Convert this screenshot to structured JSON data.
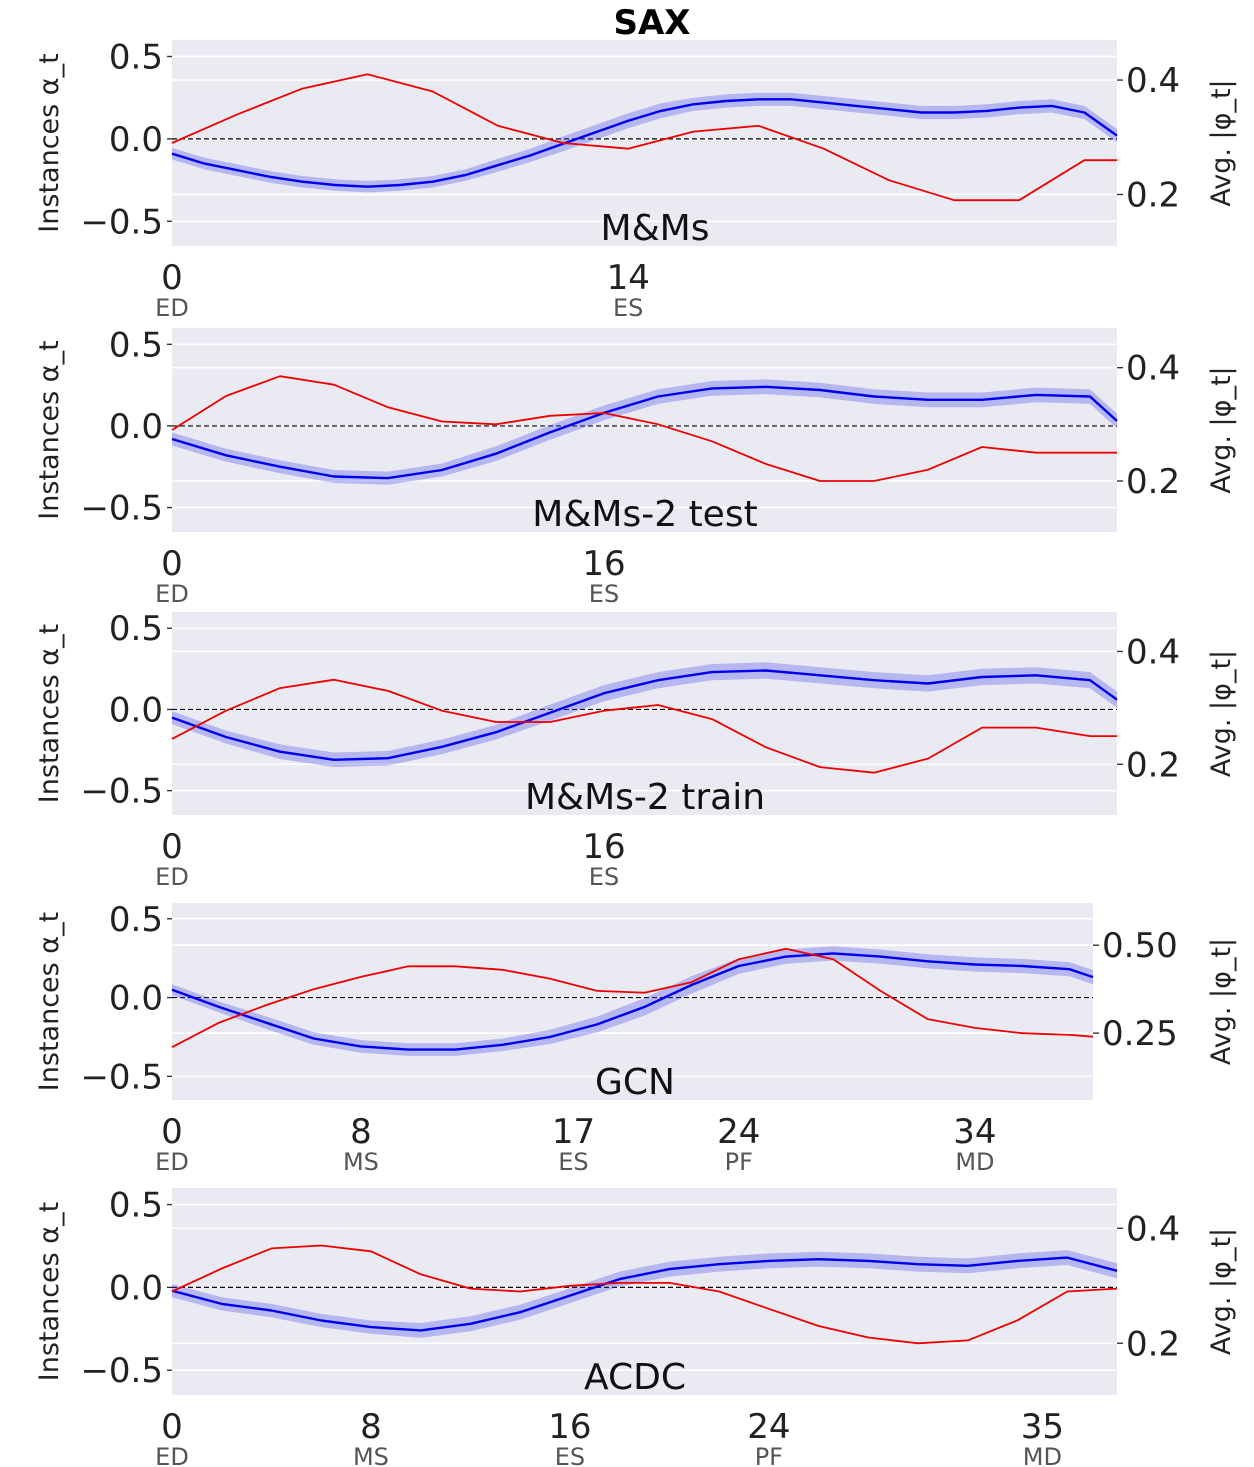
{
  "figure": {
    "title": "SAX"
  },
  "chart_data": [
    {
      "type": "line",
      "title": "M&Ms",
      "ylabel": "Instances α_t",
      "ylabel_right": "Avg. |φ_t|",
      "ylim": [
        -0.65,
        0.6
      ],
      "yticks": [
        {
          "v": 0.5,
          "label": "0.5"
        },
        {
          "v": 0.0,
          "label": "0.0"
        },
        {
          "v": -0.5,
          "label": "−0.5"
        }
      ],
      "y2lim": [
        0.11,
        0.47
      ],
      "y2ticks": [
        {
          "v": 0.4,
          "label": "0.4"
        },
        {
          "v": 0.2,
          "label": "0.2"
        }
      ],
      "xlim": [
        0,
        29
      ],
      "xticks": [
        {
          "v": 0,
          "label": "0",
          "phase": "ED"
        },
        {
          "v": 14,
          "label": "14",
          "phase": "ES"
        }
      ],
      "series": [
        {
          "name": "Instances α_t (mean)",
          "color": "#0000ee",
          "axis": "left",
          "x": [
            0,
            1,
            2,
            3,
            4,
            5,
            6,
            7,
            8,
            9,
            10,
            11,
            12,
            13,
            14,
            15,
            16,
            17,
            18,
            19,
            20,
            21,
            22,
            23,
            24,
            25,
            26,
            27,
            28,
            29
          ],
          "values": [
            -0.09,
            -0.15,
            -0.19,
            -0.23,
            -0.26,
            -0.28,
            -0.29,
            -0.28,
            -0.26,
            -0.22,
            -0.16,
            -0.1,
            -0.03,
            0.04,
            0.11,
            0.17,
            0.21,
            0.23,
            0.24,
            0.24,
            0.22,
            0.2,
            0.18,
            0.16,
            0.16,
            0.17,
            0.19,
            0.2,
            0.16,
            0.02
          ],
          "band": [
            0.035,
            0.035,
            0.035,
            0.035,
            0.035,
            0.035,
            0.035,
            0.035,
            0.035,
            0.035,
            0.04,
            0.04,
            0.045,
            0.045,
            0.045,
            0.045,
            0.04,
            0.04,
            0.04,
            0.04,
            0.04,
            0.04,
            0.04,
            0.04,
            0.04,
            0.04,
            0.04,
            0.04,
            0.04,
            0.04
          ]
        },
        {
          "name": "Avg. |φ_t|",
          "color": "#ee0000",
          "axis": "right",
          "x": [
            0,
            2,
            4,
            6,
            8,
            10,
            12,
            14,
            16,
            18,
            20,
            22,
            24,
            26,
            28,
            29
          ],
          "values": [
            0.29,
            0.34,
            0.385,
            0.41,
            0.38,
            0.32,
            0.29,
            0.28,
            0.31,
            0.32,
            0.28,
            0.225,
            0.19,
            0.19,
            0.26,
            0.26
          ]
        }
      ]
    },
    {
      "type": "line",
      "title": "M&Ms-2 test",
      "ylabel": "Instances α_t",
      "ylabel_right": "Avg. |φ_t|",
      "ylim": [
        -0.65,
        0.6
      ],
      "yticks": [
        {
          "v": 0.5,
          "label": "0.5"
        },
        {
          "v": 0.0,
          "label": "0.0"
        },
        {
          "v": -0.5,
          "label": "−0.5"
        }
      ],
      "y2lim": [
        0.11,
        0.47
      ],
      "y2ticks": [
        {
          "v": 0.4,
          "label": "0.4"
        },
        {
          "v": 0.2,
          "label": "0.2"
        }
      ],
      "xlim": [
        0,
        35
      ],
      "xticks": [
        {
          "v": 0,
          "label": "0",
          "phase": "ED"
        },
        {
          "v": 16,
          "label": "16",
          "phase": "ES"
        }
      ],
      "series": [
        {
          "name": "Instances α_t (mean)",
          "color": "#0000ee",
          "axis": "left",
          "x": [
            0,
            2,
            4,
            6,
            8,
            10,
            12,
            14,
            16,
            18,
            20,
            22,
            24,
            26,
            28,
            30,
            32,
            34,
            35
          ],
          "values": [
            -0.08,
            -0.18,
            -0.25,
            -0.31,
            -0.32,
            -0.27,
            -0.17,
            -0.04,
            0.08,
            0.18,
            0.23,
            0.24,
            0.22,
            0.18,
            0.16,
            0.16,
            0.19,
            0.18,
            0.03
          ],
          "band": [
            0.04,
            0.04,
            0.04,
            0.04,
            0.04,
            0.04,
            0.045,
            0.045,
            0.045,
            0.045,
            0.045,
            0.045,
            0.045,
            0.045,
            0.045,
            0.045,
            0.045,
            0.045,
            0.045
          ]
        },
        {
          "name": "Avg. |φ_t|",
          "color": "#ee0000",
          "axis": "right",
          "x": [
            0,
            2,
            4,
            6,
            8,
            10,
            12,
            14,
            16,
            18,
            20,
            22,
            24,
            26,
            28,
            30,
            32,
            34,
            35
          ],
          "values": [
            0.29,
            0.35,
            0.385,
            0.37,
            0.33,
            0.305,
            0.3,
            0.315,
            0.32,
            0.3,
            0.27,
            0.23,
            0.2,
            0.2,
            0.22,
            0.26,
            0.25,
            0.25,
            0.25
          ]
        }
      ]
    },
    {
      "type": "line",
      "title": "M&Ms-2 train",
      "ylabel": "Instances α_t",
      "ylabel_right": "Avg. |φ_t|",
      "ylim": [
        -0.65,
        0.6
      ],
      "yticks": [
        {
          "v": 0.5,
          "label": "0.5"
        },
        {
          "v": 0.0,
          "label": "0.0"
        },
        {
          "v": -0.5,
          "label": "−0.5"
        }
      ],
      "y2lim": [
        0.11,
        0.47
      ],
      "y2ticks": [
        {
          "v": 0.4,
          "label": "0.4"
        },
        {
          "v": 0.2,
          "label": "0.2"
        }
      ],
      "xlim": [
        0,
        35
      ],
      "xticks": [
        {
          "v": 0,
          "label": "0",
          "phase": "ED"
        },
        {
          "v": 16,
          "label": "16",
          "phase": "ES"
        }
      ],
      "series": [
        {
          "name": "Instances α_t (mean)",
          "color": "#0000ee",
          "axis": "left",
          "x": [
            0,
            2,
            4,
            6,
            8,
            10,
            12,
            14,
            16,
            18,
            20,
            22,
            24,
            26,
            28,
            30,
            32,
            34,
            35
          ],
          "values": [
            -0.05,
            -0.17,
            -0.26,
            -0.31,
            -0.3,
            -0.23,
            -0.14,
            -0.02,
            0.1,
            0.18,
            0.23,
            0.24,
            0.21,
            0.18,
            0.16,
            0.2,
            0.21,
            0.18,
            0.06
          ],
          "band": [
            0.04,
            0.04,
            0.045,
            0.045,
            0.045,
            0.045,
            0.045,
            0.05,
            0.05,
            0.05,
            0.05,
            0.05,
            0.05,
            0.05,
            0.05,
            0.05,
            0.05,
            0.05,
            0.05
          ]
        },
        {
          "name": "Avg. |φ_t|",
          "color": "#ee0000",
          "axis": "right",
          "x": [
            0,
            2,
            4,
            6,
            8,
            10,
            12,
            14,
            16,
            18,
            20,
            22,
            24,
            26,
            28,
            30,
            32,
            34,
            35
          ],
          "values": [
            0.245,
            0.295,
            0.335,
            0.35,
            0.33,
            0.295,
            0.275,
            0.275,
            0.295,
            0.305,
            0.28,
            0.23,
            0.195,
            0.185,
            0.21,
            0.265,
            0.265,
            0.25,
            0.25
          ]
        }
      ]
    },
    {
      "type": "line",
      "title": "GCN",
      "ylabel": "Instances α_t",
      "ylabel_right": "Avg. |φ_t|",
      "ylim": [
        -0.65,
        0.6
      ],
      "yticks": [
        {
          "v": 0.5,
          "label": "0.5"
        },
        {
          "v": 0.0,
          "label": "0.0"
        },
        {
          "v": -0.5,
          "label": "−0.5"
        }
      ],
      "y2lim": [
        0.06,
        0.62
      ],
      "y2ticks": [
        {
          "v": 0.5,
          "label": "0.50"
        },
        {
          "v": 0.25,
          "label": "0.25"
        }
      ],
      "xlim": [
        0,
        39
      ],
      "xticks": [
        {
          "v": 0,
          "label": "0",
          "phase": "ED"
        },
        {
          "v": 8,
          "label": "8",
          "phase": "MS"
        },
        {
          "v": 17,
          "label": "17",
          "phase": "ES"
        },
        {
          "v": 24,
          "label": "24",
          "phase": "PF"
        },
        {
          "v": 34,
          "label": "34",
          "phase": "MD"
        }
      ],
      "series": [
        {
          "name": "Instances α_t (mean)",
          "color": "#0000ee",
          "axis": "left",
          "x": [
            0,
            2,
            4,
            6,
            8,
            10,
            12,
            14,
            16,
            18,
            20,
            22,
            24,
            26,
            28,
            30,
            32,
            34,
            36,
            38,
            39
          ],
          "values": [
            0.05,
            -0.06,
            -0.16,
            -0.26,
            -0.31,
            -0.33,
            -0.33,
            -0.3,
            -0.25,
            -0.17,
            -0.06,
            0.08,
            0.2,
            0.26,
            0.28,
            0.26,
            0.23,
            0.21,
            0.2,
            0.18,
            0.13
          ],
          "band": [
            0.035,
            0.035,
            0.04,
            0.04,
            0.04,
            0.04,
            0.04,
            0.04,
            0.045,
            0.05,
            0.055,
            0.055,
            0.05,
            0.045,
            0.045,
            0.045,
            0.045,
            0.045,
            0.045,
            0.045,
            0.045
          ]
        },
        {
          "name": "Avg. |φ_t|",
          "color": "#ee0000",
          "axis": "right",
          "x": [
            0,
            2,
            4,
            6,
            8,
            10,
            12,
            14,
            16,
            18,
            20,
            22,
            24,
            26,
            28,
            30,
            32,
            34,
            36,
            38,
            39
          ],
          "values": [
            0.21,
            0.28,
            0.33,
            0.375,
            0.41,
            0.44,
            0.44,
            0.43,
            0.405,
            0.37,
            0.365,
            0.395,
            0.46,
            0.49,
            0.46,
            0.37,
            0.29,
            0.265,
            0.25,
            0.245,
            0.24
          ]
        }
      ]
    },
    {
      "type": "line",
      "title": "ACDC",
      "ylabel": "Instances α_t",
      "ylabel_right": "Avg. |φ_t|",
      "ylim": [
        -0.65,
        0.6
      ],
      "yticks": [
        {
          "v": 0.5,
          "label": "0.5"
        },
        {
          "v": 0.0,
          "label": "0.0"
        },
        {
          "v": -0.5,
          "label": "−0.5"
        }
      ],
      "y2lim": [
        0.11,
        0.47
      ],
      "y2ticks": [
        {
          "v": 0.4,
          "label": "0.4"
        },
        {
          "v": 0.2,
          "label": "0.2"
        }
      ],
      "xlim": [
        0,
        38
      ],
      "xticks": [
        {
          "v": 0,
          "label": "0",
          "phase": "ED"
        },
        {
          "v": 8,
          "label": "8",
          "phase": "MS"
        },
        {
          "v": 16,
          "label": "16",
          "phase": "ES"
        },
        {
          "v": 24,
          "label": "24",
          "phase": "PF"
        },
        {
          "v": 35,
          "label": "35",
          "phase": "MD"
        }
      ],
      "series": [
        {
          "name": "Instances α_t (mean)",
          "color": "#0000ee",
          "axis": "left",
          "x": [
            0,
            2,
            4,
            6,
            8,
            10,
            12,
            14,
            16,
            18,
            20,
            22,
            24,
            26,
            28,
            30,
            32,
            34,
            36,
            38
          ],
          "values": [
            -0.02,
            -0.1,
            -0.14,
            -0.2,
            -0.24,
            -0.26,
            -0.22,
            -0.15,
            -0.05,
            0.05,
            0.11,
            0.14,
            0.16,
            0.17,
            0.16,
            0.14,
            0.13,
            0.16,
            0.18,
            0.1
          ],
          "band": [
            0.04,
            0.04,
            0.04,
            0.04,
            0.04,
            0.045,
            0.045,
            0.045,
            0.045,
            0.045,
            0.045,
            0.045,
            0.045,
            0.045,
            0.045,
            0.045,
            0.045,
            0.045,
            0.045,
            0.045
          ]
        },
        {
          "name": "Avg. |φ_t|",
          "color": "#ee0000",
          "axis": "right",
          "x": [
            0,
            2,
            4,
            6,
            8,
            10,
            12,
            14,
            16,
            18,
            20,
            22,
            24,
            26,
            28,
            30,
            32,
            34,
            36,
            38
          ],
          "values": [
            0.29,
            0.33,
            0.365,
            0.37,
            0.36,
            0.32,
            0.295,
            0.29,
            0.3,
            0.305,
            0.305,
            0.29,
            0.26,
            0.23,
            0.21,
            0.2,
            0.205,
            0.24,
            0.29,
            0.295
          ]
        }
      ]
    }
  ]
}
